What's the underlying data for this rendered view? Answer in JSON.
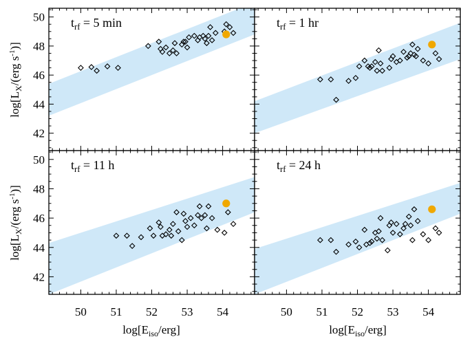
{
  "figure": {
    "xlabel": "log[E_iso/erg]",
    "ylabel": "log[L_X/(erg s^-1)]"
  },
  "chart_data": [
    {
      "type": "scatter",
      "panel": "top-left",
      "title": "t_rf = 5 min",
      "xlim": [
        49.1,
        54.9
      ],
      "ylim": [
        40.8,
        50.6
      ],
      "xticks": [
        50,
        51,
        52,
        53,
        54
      ],
      "yticks": [
        42,
        44,
        46,
        48,
        50
      ],
      "band": {
        "color": "#cfe8f8",
        "lower": [
          [
            49.1,
            43.2
          ],
          [
            54.9,
            48.8
          ]
        ],
        "upper": [
          [
            49.1,
            45.4
          ],
          [
            54.9,
            51.0
          ]
        ]
      },
      "series": [
        {
          "marker": "open-diamond",
          "color": "#000000",
          "x": [
            50.0,
            50.3,
            50.45,
            50.75,
            51.05,
            51.9,
            52.2,
            52.25,
            52.3,
            52.4,
            52.5,
            52.6,
            52.65,
            52.7,
            52.85,
            52.9,
            52.95,
            53.0,
            53.05,
            53.2,
            53.3,
            53.35,
            53.45,
            53.5,
            53.55,
            53.6,
            53.65,
            53.7,
            53.8,
            54.05,
            54.1,
            54.2,
            54.3
          ],
          "y": [
            46.5,
            46.55,
            46.3,
            46.6,
            46.5,
            48.0,
            48.3,
            47.8,
            47.6,
            47.9,
            47.5,
            47.7,
            48.2,
            47.5,
            48.1,
            48.3,
            48.3,
            47.9,
            48.6,
            48.7,
            48.4,
            48.6,
            48.7,
            48.5,
            48.2,
            48.7,
            49.3,
            48.4,
            48.9,
            49.0,
            49.5,
            49.3,
            48.9
          ]
        },
        {
          "marker": "filled-circle",
          "color": "#f0a800",
          "x": [
            54.1
          ],
          "y": [
            48.8
          ]
        }
      ]
    },
    {
      "type": "scatter",
      "panel": "top-right",
      "title": "t_rf = 1 hr",
      "xlim": [
        49.1,
        54.9
      ],
      "ylim": [
        40.8,
        50.6
      ],
      "xticks": [
        50,
        51,
        52,
        53,
        54
      ],
      "yticks": [
        42,
        44,
        46,
        48,
        50
      ],
      "band": {
        "color": "#cfe8f8",
        "lower": [
          [
            49.1,
            42.0
          ],
          [
            54.9,
            47.1
          ]
        ],
        "upper": [
          [
            49.1,
            44.2
          ],
          [
            54.9,
            49.6
          ]
        ]
      },
      "series": [
        {
          "marker": "open-diamond",
          "color": "#000000",
          "x": [
            50.95,
            51.25,
            51.4,
            51.75,
            51.95,
            52.05,
            52.2,
            52.3,
            52.35,
            52.4,
            52.5,
            52.55,
            52.6,
            52.65,
            52.7,
            52.9,
            52.95,
            53.0,
            53.1,
            53.2,
            53.3,
            53.4,
            53.45,
            53.5,
            53.55,
            53.6,
            53.65,
            53.7,
            53.85,
            54.0,
            54.2,
            54.3
          ],
          "y": [
            45.7,
            45.7,
            44.3,
            45.6,
            45.8,
            46.6,
            47.0,
            46.6,
            46.5,
            46.6,
            46.9,
            46.3,
            47.7,
            46.8,
            46.3,
            46.5,
            47.1,
            47.3,
            46.9,
            47.0,
            47.6,
            47.2,
            47.3,
            47.5,
            48.1,
            47.4,
            47.3,
            47.8,
            47.0,
            46.8,
            47.5,
            47.1
          ]
        },
        {
          "marker": "filled-circle",
          "color": "#f0a800",
          "x": [
            54.1
          ],
          "y": [
            48.1
          ]
        }
      ]
    },
    {
      "type": "scatter",
      "panel": "bottom-left",
      "title": "t_rf = 11 h",
      "xlim": [
        49.1,
        54.9
      ],
      "ylim": [
        40.8,
        50.6
      ],
      "xticks": [
        50,
        51,
        52,
        53,
        54
      ],
      "yticks": [
        42,
        44,
        46,
        48,
        50
      ],
      "band": {
        "color": "#cfe8f8",
        "lower": [
          [
            49.1,
            40.8
          ],
          [
            54.9,
            46.4
          ]
        ],
        "upper": [
          [
            49.1,
            44.3
          ],
          [
            54.9,
            48.8
          ]
        ]
      },
      "series": [
        {
          "marker": "open-diamond",
          "color": "#000000",
          "x": [
            51.0,
            51.3,
            51.45,
            51.7,
            51.95,
            52.05,
            52.2,
            52.25,
            52.3,
            52.4,
            52.5,
            52.55,
            52.6,
            52.7,
            52.75,
            52.85,
            52.9,
            52.95,
            53.0,
            53.1,
            53.2,
            53.3,
            53.35,
            53.4,
            53.5,
            53.55,
            53.6,
            53.7,
            53.85,
            54.05,
            54.15,
            54.3
          ],
          "y": [
            44.8,
            44.8,
            44.1,
            44.7,
            45.3,
            44.8,
            45.7,
            45.4,
            44.8,
            44.9,
            45.2,
            44.8,
            45.6,
            46.4,
            45.1,
            44.5,
            46.3,
            45.8,
            45.4,
            46.0,
            45.5,
            46.2,
            46.8,
            46.0,
            46.2,
            45.3,
            46.8,
            46.0,
            45.2,
            45.0,
            46.4,
            45.6
          ]
        },
        {
          "marker": "filled-circle",
          "color": "#f0a800",
          "x": [
            54.1
          ],
          "y": [
            47.0
          ]
        }
      ]
    },
    {
      "type": "scatter",
      "panel": "bottom-right",
      "title": "t_rf = 24 h",
      "xlim": [
        49.1,
        54.9
      ],
      "ylim": [
        40.8,
        50.6
      ],
      "xticks": [
        50,
        51,
        52,
        53,
        54
      ],
      "yticks": [
        42,
        44,
        46,
        48,
        50
      ],
      "band": {
        "color": "#cfe8f8",
        "lower": [
          [
            49.1,
            40.8
          ],
          [
            54.9,
            46.3
          ]
        ],
        "upper": [
          [
            49.1,
            43.9
          ],
          [
            54.9,
            48.4
          ]
        ]
      },
      "series": [
        {
          "marker": "open-diamond",
          "color": "#000000",
          "x": [
            50.95,
            51.25,
            51.4,
            51.75,
            51.95,
            52.05,
            52.2,
            52.25,
            52.35,
            52.4,
            52.5,
            52.55,
            52.6,
            52.65,
            52.7,
            52.85,
            52.9,
            52.95,
            53.0,
            53.1,
            53.2,
            53.3,
            53.35,
            53.45,
            53.5,
            53.55,
            53.6,
            53.7,
            53.85,
            54.0,
            54.2,
            54.3
          ],
          "y": [
            44.5,
            44.5,
            43.7,
            44.2,
            44.4,
            44.0,
            45.2,
            44.2,
            44.3,
            44.4,
            45.0,
            44.6,
            45.1,
            46.0,
            44.5,
            43.8,
            45.5,
            45.7,
            45.0,
            45.6,
            44.9,
            45.3,
            45.6,
            46.1,
            45.5,
            44.5,
            46.6,
            45.8,
            44.9,
            44.5,
            45.3,
            45.0
          ]
        },
        {
          "marker": "filled-circle",
          "color": "#f0a800",
          "x": [
            54.1
          ],
          "y": [
            46.6
          ]
        }
      ]
    }
  ]
}
